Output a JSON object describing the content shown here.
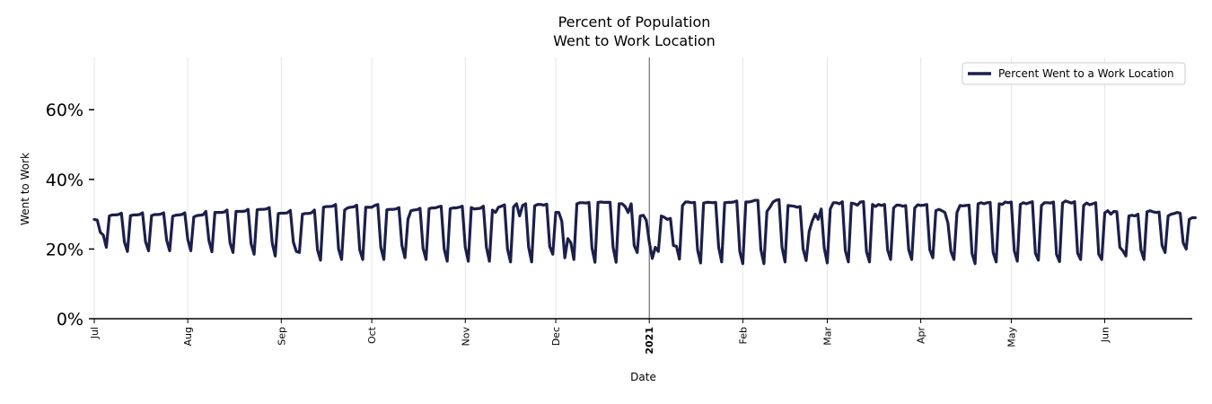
{
  "chart_data": {
    "type": "line",
    "title_line1": "Percent of Population",
    "title_line2": "Went to Work Location",
    "xlabel": "Date",
    "ylabel": "Went to Work",
    "ylim": [
      0,
      75
    ],
    "yticks": [
      0,
      20,
      40,
      60
    ],
    "ytick_labels": [
      "0%",
      "20%",
      "40%",
      "60%"
    ],
    "xlim_days": [
      0,
      364
    ],
    "xticks": [
      {
        "day": 0,
        "label": "Jul",
        "bold": false
      },
      {
        "day": 31,
        "label": "Aug",
        "bold": false
      },
      {
        "day": 62,
        "label": "Sep",
        "bold": false
      },
      {
        "day": 92,
        "label": "Oct",
        "bold": false
      },
      {
        "day": 123,
        "label": "Nov",
        "bold": false
      },
      {
        "day": 153,
        "label": "Dec",
        "bold": false
      },
      {
        "day": 184,
        "label": "2021",
        "bold": true
      },
      {
        "day": 215,
        "label": "Feb",
        "bold": false
      },
      {
        "day": 243,
        "label": "Mar",
        "bold": false
      },
      {
        "day": 274,
        "label": "Apr",
        "bold": false
      },
      {
        "day": 304,
        "label": "May",
        "bold": false
      },
      {
        "day": 335,
        "label": "Jun",
        "bold": false
      }
    ],
    "year_marker_day": 184,
    "grid": "vertical",
    "legend_position": "top-right",
    "series": [
      {
        "name": "Percent Went to a Work Location",
        "color": "#1c1f4a",
        "start_date": "2020-07-01",
        "values": [
          28.5,
          28.3,
          24.8,
          24.0,
          20.5,
          29.5,
          29.8,
          29.8,
          29.9,
          30.3,
          22.0,
          19.3,
          29.6,
          29.8,
          29.8,
          29.9,
          30.4,
          22.1,
          19.5,
          29.6,
          29.9,
          29.9,
          30.0,
          30.4,
          22.5,
          19.5,
          29.4,
          29.7,
          29.8,
          29.9,
          30.4,
          22.8,
          19.5,
          29.2,
          29.6,
          29.7,
          29.8,
          30.8,
          22.5,
          19.2,
          30.5,
          30.5,
          30.5,
          30.6,
          31.2,
          21.8,
          19.0,
          30.8,
          30.8,
          30.8,
          30.9,
          31.4,
          21.5,
          18.5,
          31.3,
          31.4,
          31.4,
          31.5,
          31.9,
          21.7,
          18.0,
          30.2,
          30.3,
          30.3,
          30.4,
          31.1,
          22.0,
          19.3,
          19.0,
          30.0,
          30.2,
          30.2,
          30.4,
          31.2,
          19.8,
          16.8,
          32.0,
          32.2,
          32.2,
          32.3,
          32.8,
          20.0,
          17.0,
          31.2,
          31.8,
          32.0,
          32.1,
          32.6,
          19.8,
          17.0,
          32.0,
          32.0,
          32.0,
          32.5,
          32.8,
          20.5,
          17.0,
          31.3,
          31.4,
          31.4,
          31.5,
          31.9,
          21.0,
          17.5,
          28.6,
          31.0,
          31.2,
          31.3,
          31.7,
          20.2,
          17.0,
          31.6,
          31.8,
          31.8,
          32.1,
          32.3,
          20.0,
          16.5,
          31.6,
          31.8,
          31.8,
          32.0,
          32.3,
          20.5,
          16.5,
          31.9,
          31.5,
          31.6,
          31.7,
          32.3,
          20.5,
          16.5,
          31.2,
          30.5,
          32.0,
          32.3,
          32.7,
          20.0,
          16.3,
          32.1,
          33.0,
          29.5,
          32.5,
          33.0,
          20.5,
          16.3,
          32.4,
          32.8,
          32.8,
          32.6,
          32.9,
          20.7,
          18.5,
          30.5,
          30.5,
          28.0,
          17.5,
          23.0,
          21.8,
          17.0,
          33.0,
          33.3,
          33.3,
          33.2,
          33.4,
          20.3,
          16.2,
          33.4,
          33.5,
          33.4,
          33.4,
          33.4,
          20.5,
          16.2,
          33.0,
          33.0,
          32.2,
          30.5,
          33.0,
          21.0,
          19.0,
          29.5,
          29.7,
          28.3,
          22.0,
          17.3,
          20.5,
          19.3,
          29.5,
          29.1,
          28.5,
          28.8,
          21.0,
          20.8,
          17.1,
          32.5,
          33.5,
          33.5,
          33.3,
          33.4,
          19.8,
          16.0,
          33.2,
          33.4,
          33.4,
          33.3,
          33.4,
          20.5,
          16.3,
          33.3,
          33.4,
          33.4,
          33.5,
          33.8,
          19.3,
          15.8,
          33.5,
          33.5,
          33.7,
          34.0,
          34.0,
          19.8,
          15.8,
          30.8,
          32.0,
          33.5,
          34.0,
          34.2,
          20.5,
          16.3,
          32.5,
          32.4,
          32.3,
          32.0,
          32.2,
          20.0,
          16.7,
          25.0,
          28.0,
          30.0,
          28.5,
          31.5,
          20.3,
          16.0,
          31.5,
          33.3,
          33.3,
          33.0,
          33.6,
          19.5,
          16.3,
          33.2,
          33.0,
          32.6,
          33.5,
          33.6,
          19.3,
          16.3,
          32.8,
          32.2,
          32.8,
          32.5,
          32.8,
          19.8,
          17.0,
          31.8,
          32.6,
          32.6,
          32.3,
          32.5,
          19.8,
          17.0,
          31.8,
          32.7,
          32.5,
          32.6,
          32.8,
          19.8,
          17.5,
          31.0,
          31.4,
          31.0,
          30.5,
          27.5,
          19.3,
          17.0,
          30.5,
          32.5,
          32.4,
          32.5,
          32.6,
          18.7,
          15.8,
          33.0,
          33.3,
          33.0,
          33.3,
          33.4,
          19.0,
          16.3,
          33.0,
          32.8,
          33.5,
          33.3,
          33.5,
          19.5,
          16.5,
          32.8,
          33.3,
          33.0,
          33.3,
          33.6,
          18.8,
          16.8,
          32.5,
          33.3,
          33.3,
          33.2,
          33.5,
          18.5,
          16.4,
          33.2,
          33.8,
          33.5,
          33.2,
          33.6,
          18.8,
          17.0,
          32.5,
          33.2,
          32.7,
          33.0,
          33.3,
          18.5,
          17.0,
          30.4,
          31.0,
          30.0,
          30.8,
          30.7,
          20.5,
          19.5,
          18.0,
          29.5,
          29.7,
          29.5,
          30.0,
          19.8,
          17.0,
          30.7,
          31.0,
          30.7,
          30.5,
          30.6,
          21.0,
          19.0,
          29.5,
          30.0,
          30.2,
          30.5,
          30.3,
          21.8,
          20.0,
          28.5,
          29.0,
          29.0
        ]
      }
    ]
  }
}
